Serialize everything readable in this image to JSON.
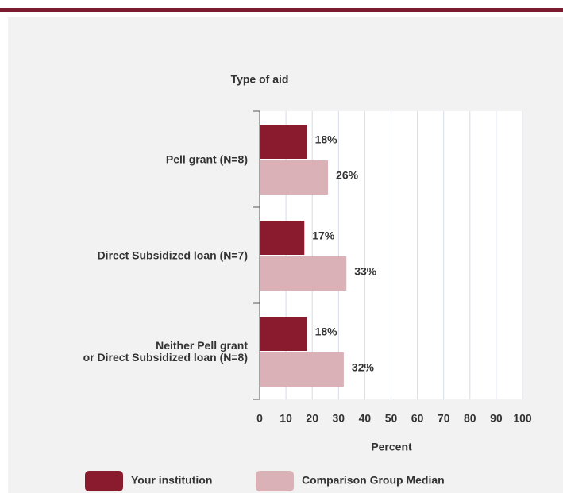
{
  "chart_data": {
    "type": "bar",
    "orientation": "horizontal",
    "title": "Type of aid",
    "categories": [
      "Pell grant  (N=8)",
      "Direct Subsidized loan (N=7)",
      "Neither Pell grant\nor Direct Subsidized loan (N=8)"
    ],
    "series": [
      {
        "name": "Your institution",
        "color": "#8a1a2e",
        "values": [
          18,
          17,
          18
        ],
        "value_labels": [
          "18%",
          "17%",
          "18%"
        ]
      },
      {
        "name": "Comparison Group Median",
        "color": "#d9b1b7",
        "values": [
          26,
          33,
          32
        ],
        "value_labels": [
          "26%",
          "33%",
          "32%"
        ]
      }
    ],
    "x_label": "Percent",
    "xlim": [
      0,
      100
    ],
    "xticks": [
      0,
      10,
      20,
      30,
      40,
      50,
      60,
      70,
      80,
      90,
      100
    ],
    "grid": true,
    "legend": "bottom"
  }
}
